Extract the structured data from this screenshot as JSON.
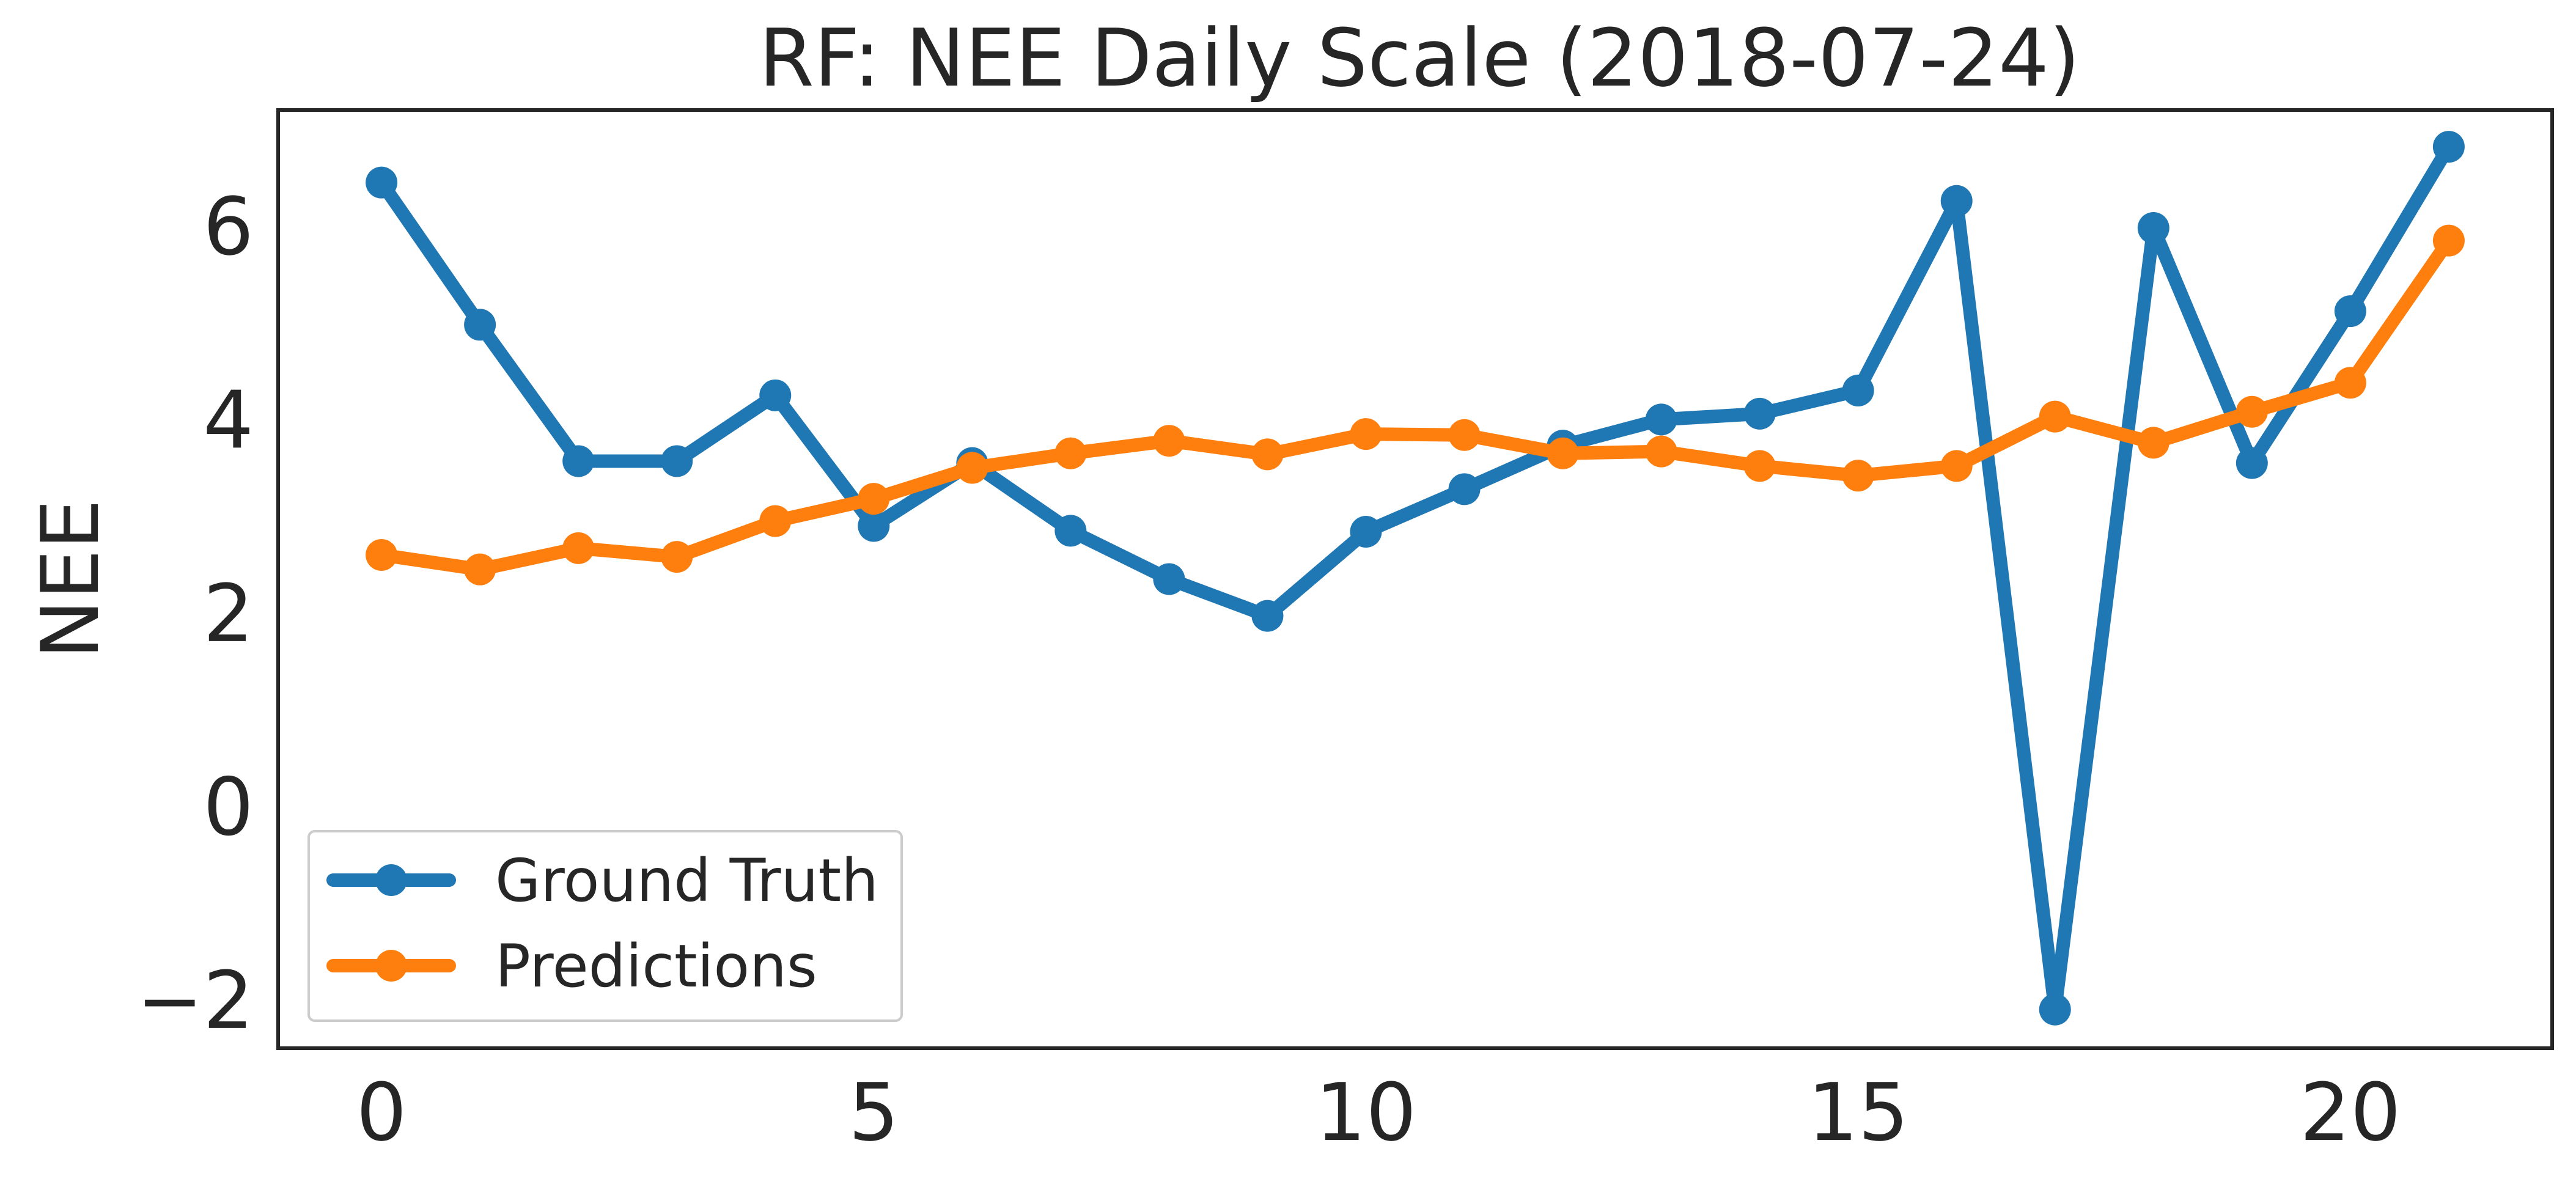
{
  "chart_data": {
    "type": "line",
    "title": "RF: NEE Daily Scale (2018-07-24)",
    "xlabel": "",
    "ylabel": "NEE",
    "xlim": [
      -1.05,
      22.05
    ],
    "ylim": [
      -2.5,
      7.2
    ],
    "xticks": [
      0,
      5,
      10,
      15,
      20
    ],
    "xtick_labels": [
      "0",
      "5",
      "10",
      "15",
      "20"
    ],
    "yticks": [
      -2,
      0,
      2,
      4,
      6
    ],
    "ytick_labels": [
      "−2",
      "0",
      "2",
      "4",
      "6"
    ],
    "grid": false,
    "legend_position": "lower-left",
    "x": [
      0,
      1,
      2,
      3,
      4,
      5,
      6,
      7,
      8,
      9,
      10,
      11,
      12,
      13,
      14,
      15,
      16,
      17,
      18,
      19,
      20,
      21
    ],
    "series": [
      {
        "name": "Ground Truth",
        "color": "#1f77b4",
        "values": [
          6.45,
          4.98,
          3.57,
          3.57,
          4.25,
          2.9,
          3.55,
          2.85,
          2.35,
          1.97,
          2.84,
          3.28,
          3.73,
          4.0,
          4.06,
          4.3,
          6.26,
          -2.1,
          5.98,
          3.55,
          5.12,
          6.82
        ]
      },
      {
        "name": "Predictions",
        "color": "#ff7f0e",
        "values": [
          2.6,
          2.45,
          2.67,
          2.58,
          2.95,
          3.18,
          3.5,
          3.65,
          3.78,
          3.64,
          3.85,
          3.84,
          3.65,
          3.67,
          3.52,
          3.42,
          3.52,
          4.03,
          3.76,
          4.08,
          4.38,
          5.85
        ]
      }
    ]
  }
}
